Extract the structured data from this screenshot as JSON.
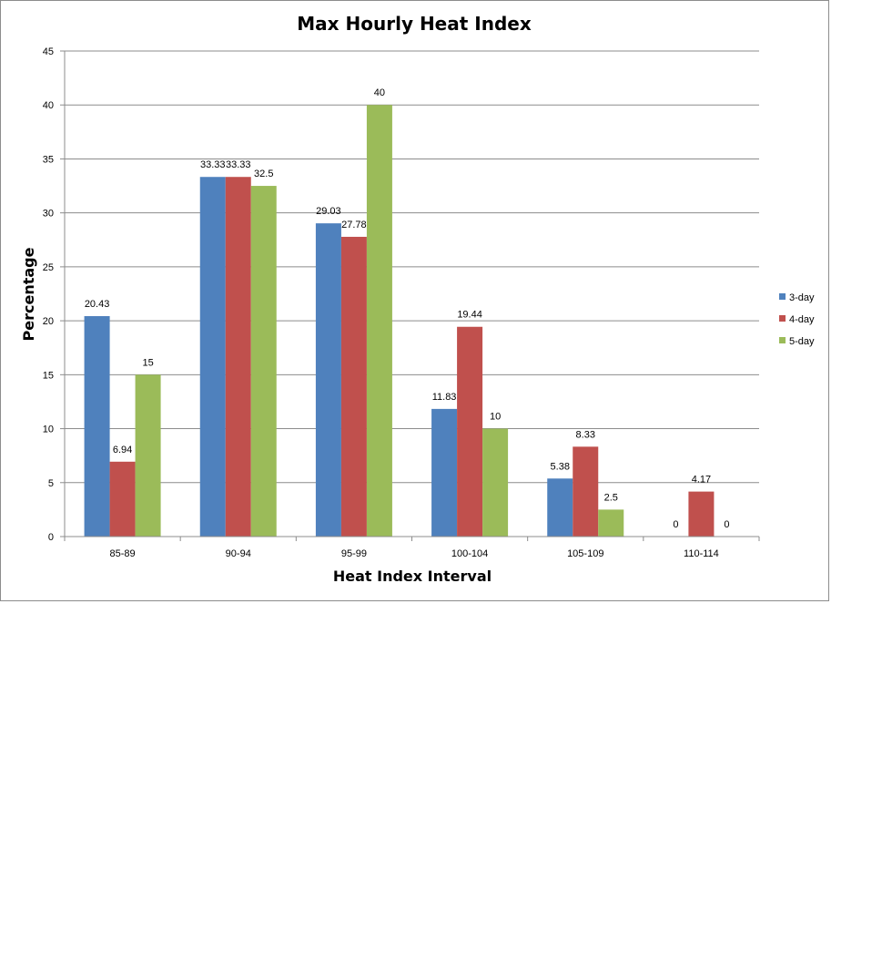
{
  "chart_data": {
    "type": "bar",
    "title": "Max Hourly Heat Index",
    "xlabel": "Heat Index Interval",
    "ylabel": "Percentage",
    "categories": [
      "85-89",
      "90-94",
      "95-99",
      "100-104",
      "105-109",
      "110-114"
    ],
    "series": [
      {
        "name": "3-day",
        "color": "#4F81BD",
        "values": [
          20.43,
          33.33,
          29.03,
          11.83,
          5.38,
          0
        ]
      },
      {
        "name": "4-day",
        "color": "#C0504D",
        "values": [
          6.94,
          33.33,
          27.78,
          19.44,
          8.33,
          4.17
        ]
      },
      {
        "name": "5-day",
        "color": "#9BBB59",
        "values": [
          15,
          32.5,
          40,
          10,
          2.5,
          0
        ]
      }
    ],
    "ylim": [
      0,
      45
    ],
    "yticks": [
      "0",
      "5",
      "10",
      "15",
      "20",
      "25",
      "30",
      "35",
      "40",
      "45"
    ],
    "grid": true,
    "legend_position": "right",
    "data_labels": true
  }
}
